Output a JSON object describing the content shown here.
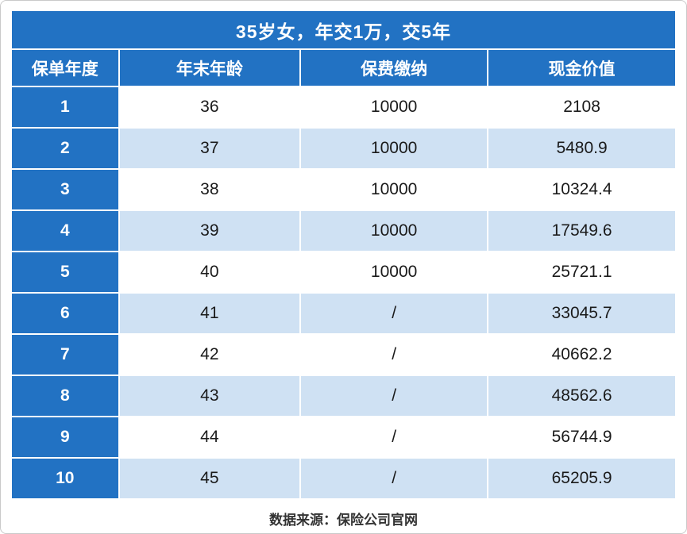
{
  "colors": {
    "primary_blue": "#2272C3",
    "light_blue": "#CFE1F3",
    "text_dark": "#1a1a1a",
    "border_gray": "#c9c9c9"
  },
  "chart_data": {
    "type": "table",
    "title": "35岁女，年交1万，交5年",
    "columns": [
      "保单年度",
      "年末年龄",
      "保费缴纳",
      "现金价值"
    ],
    "rows": [
      [
        "1",
        "36",
        "10000",
        "2108"
      ],
      [
        "2",
        "37",
        "10000",
        "5480.9"
      ],
      [
        "3",
        "38",
        "10000",
        "10324.4"
      ],
      [
        "4",
        "39",
        "10000",
        "17549.6"
      ],
      [
        "5",
        "40",
        "10000",
        "25721.1"
      ],
      [
        "6",
        "41",
        "/",
        "33045.7"
      ],
      [
        "7",
        "42",
        "/",
        "40662.2"
      ],
      [
        "8",
        "43",
        "/",
        "48562.6"
      ],
      [
        "9",
        "44",
        "/",
        "56744.9"
      ],
      [
        "10",
        "45",
        "/",
        "65205.9"
      ]
    ],
    "source": "数据来源：保险公司官网"
  }
}
